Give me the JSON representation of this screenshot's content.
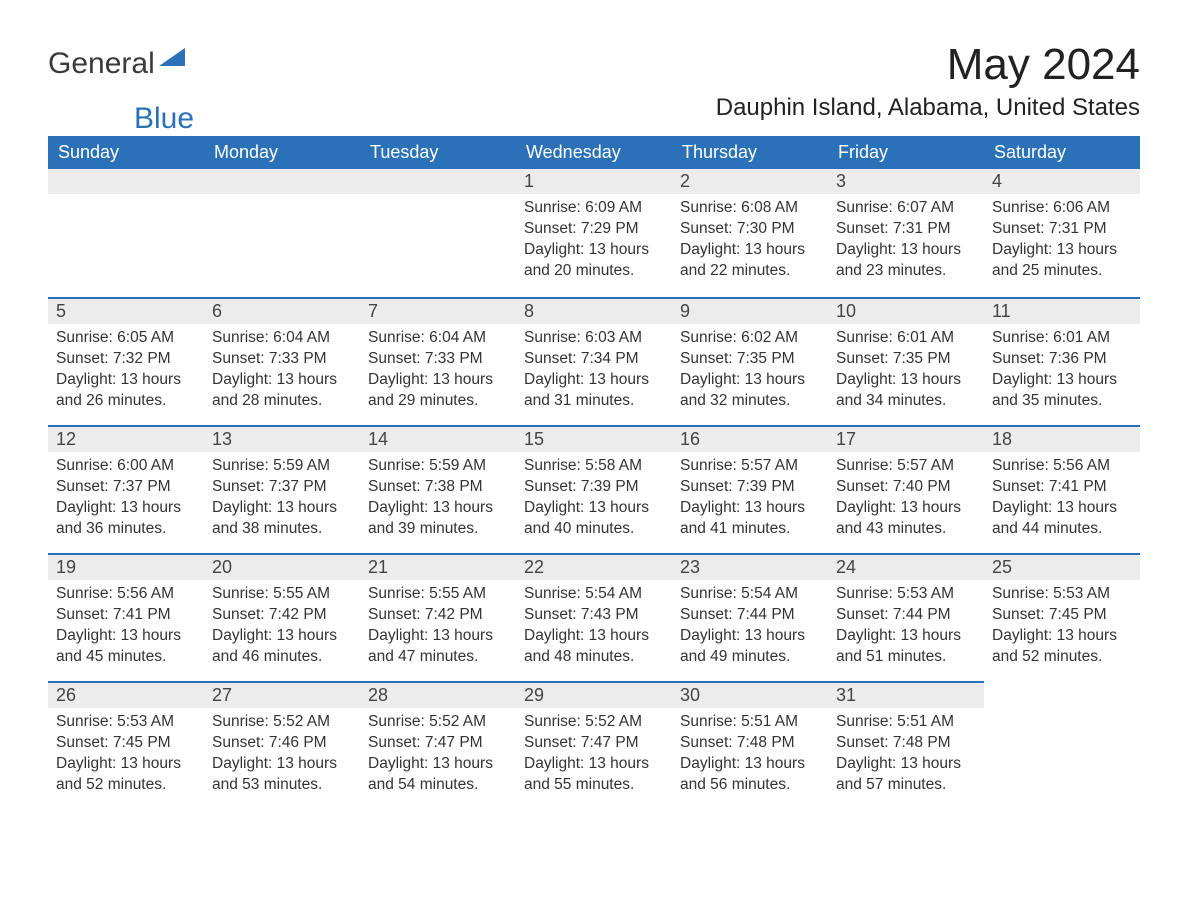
{
  "brand": {
    "part1": "General",
    "part2": "Blue",
    "flag_color": "#2b71b8"
  },
  "title": "May 2024",
  "subtitle": "Dauphin Island, Alabama, United States",
  "colors": {
    "header_bg": "#2b71b8",
    "header_text": "#ffffff",
    "daynum_bg": "#ececec",
    "row_divider": "#2b71b8",
    "body_text": "#333333",
    "page_bg": "#ffffff"
  },
  "typography": {
    "title_fontsize": 44,
    "subtitle_fontsize": 24,
    "header_fontsize": 18,
    "daynum_fontsize": 18,
    "body_fontsize": 15.5
  },
  "layout": {
    "columns": 7,
    "rows": 5,
    "first_weekday_index": 3
  },
  "weekdays": [
    "Sunday",
    "Monday",
    "Tuesday",
    "Wednesday",
    "Thursday",
    "Friday",
    "Saturday"
  ],
  "labels": {
    "sunrise": "Sunrise:",
    "sunset": "Sunset:",
    "daylight": "Daylight:"
  },
  "days": [
    {
      "n": 1,
      "sunrise": "6:09 AM",
      "sunset": "7:29 PM",
      "daylight": "13 hours and 20 minutes."
    },
    {
      "n": 2,
      "sunrise": "6:08 AM",
      "sunset": "7:30 PM",
      "daylight": "13 hours and 22 minutes."
    },
    {
      "n": 3,
      "sunrise": "6:07 AM",
      "sunset": "7:31 PM",
      "daylight": "13 hours and 23 minutes."
    },
    {
      "n": 4,
      "sunrise": "6:06 AM",
      "sunset": "7:31 PM",
      "daylight": "13 hours and 25 minutes."
    },
    {
      "n": 5,
      "sunrise": "6:05 AM",
      "sunset": "7:32 PM",
      "daylight": "13 hours and 26 minutes."
    },
    {
      "n": 6,
      "sunrise": "6:04 AM",
      "sunset": "7:33 PM",
      "daylight": "13 hours and 28 minutes."
    },
    {
      "n": 7,
      "sunrise": "6:04 AM",
      "sunset": "7:33 PM",
      "daylight": "13 hours and 29 minutes."
    },
    {
      "n": 8,
      "sunrise": "6:03 AM",
      "sunset": "7:34 PM",
      "daylight": "13 hours and 31 minutes."
    },
    {
      "n": 9,
      "sunrise": "6:02 AM",
      "sunset": "7:35 PM",
      "daylight": "13 hours and 32 minutes."
    },
    {
      "n": 10,
      "sunrise": "6:01 AM",
      "sunset": "7:35 PM",
      "daylight": "13 hours and 34 minutes."
    },
    {
      "n": 11,
      "sunrise": "6:01 AM",
      "sunset": "7:36 PM",
      "daylight": "13 hours and 35 minutes."
    },
    {
      "n": 12,
      "sunrise": "6:00 AM",
      "sunset": "7:37 PM",
      "daylight": "13 hours and 36 minutes."
    },
    {
      "n": 13,
      "sunrise": "5:59 AM",
      "sunset": "7:37 PM",
      "daylight": "13 hours and 38 minutes."
    },
    {
      "n": 14,
      "sunrise": "5:59 AM",
      "sunset": "7:38 PM",
      "daylight": "13 hours and 39 minutes."
    },
    {
      "n": 15,
      "sunrise": "5:58 AM",
      "sunset": "7:39 PM",
      "daylight": "13 hours and 40 minutes."
    },
    {
      "n": 16,
      "sunrise": "5:57 AM",
      "sunset": "7:39 PM",
      "daylight": "13 hours and 41 minutes."
    },
    {
      "n": 17,
      "sunrise": "5:57 AM",
      "sunset": "7:40 PM",
      "daylight": "13 hours and 43 minutes."
    },
    {
      "n": 18,
      "sunrise": "5:56 AM",
      "sunset": "7:41 PM",
      "daylight": "13 hours and 44 minutes."
    },
    {
      "n": 19,
      "sunrise": "5:56 AM",
      "sunset": "7:41 PM",
      "daylight": "13 hours and 45 minutes."
    },
    {
      "n": 20,
      "sunrise": "5:55 AM",
      "sunset": "7:42 PM",
      "daylight": "13 hours and 46 minutes."
    },
    {
      "n": 21,
      "sunrise": "5:55 AM",
      "sunset": "7:42 PM",
      "daylight": "13 hours and 47 minutes."
    },
    {
      "n": 22,
      "sunrise": "5:54 AM",
      "sunset": "7:43 PM",
      "daylight": "13 hours and 48 minutes."
    },
    {
      "n": 23,
      "sunrise": "5:54 AM",
      "sunset": "7:44 PM",
      "daylight": "13 hours and 49 minutes."
    },
    {
      "n": 24,
      "sunrise": "5:53 AM",
      "sunset": "7:44 PM",
      "daylight": "13 hours and 51 minutes."
    },
    {
      "n": 25,
      "sunrise": "5:53 AM",
      "sunset": "7:45 PM",
      "daylight": "13 hours and 52 minutes."
    },
    {
      "n": 26,
      "sunrise": "5:53 AM",
      "sunset": "7:45 PM",
      "daylight": "13 hours and 52 minutes."
    },
    {
      "n": 27,
      "sunrise": "5:52 AM",
      "sunset": "7:46 PM",
      "daylight": "13 hours and 53 minutes."
    },
    {
      "n": 28,
      "sunrise": "5:52 AM",
      "sunset": "7:47 PM",
      "daylight": "13 hours and 54 minutes."
    },
    {
      "n": 29,
      "sunrise": "5:52 AM",
      "sunset": "7:47 PM",
      "daylight": "13 hours and 55 minutes."
    },
    {
      "n": 30,
      "sunrise": "5:51 AM",
      "sunset": "7:48 PM",
      "daylight": "13 hours and 56 minutes."
    },
    {
      "n": 31,
      "sunrise": "5:51 AM",
      "sunset": "7:48 PM",
      "daylight": "13 hours and 57 minutes."
    }
  ]
}
